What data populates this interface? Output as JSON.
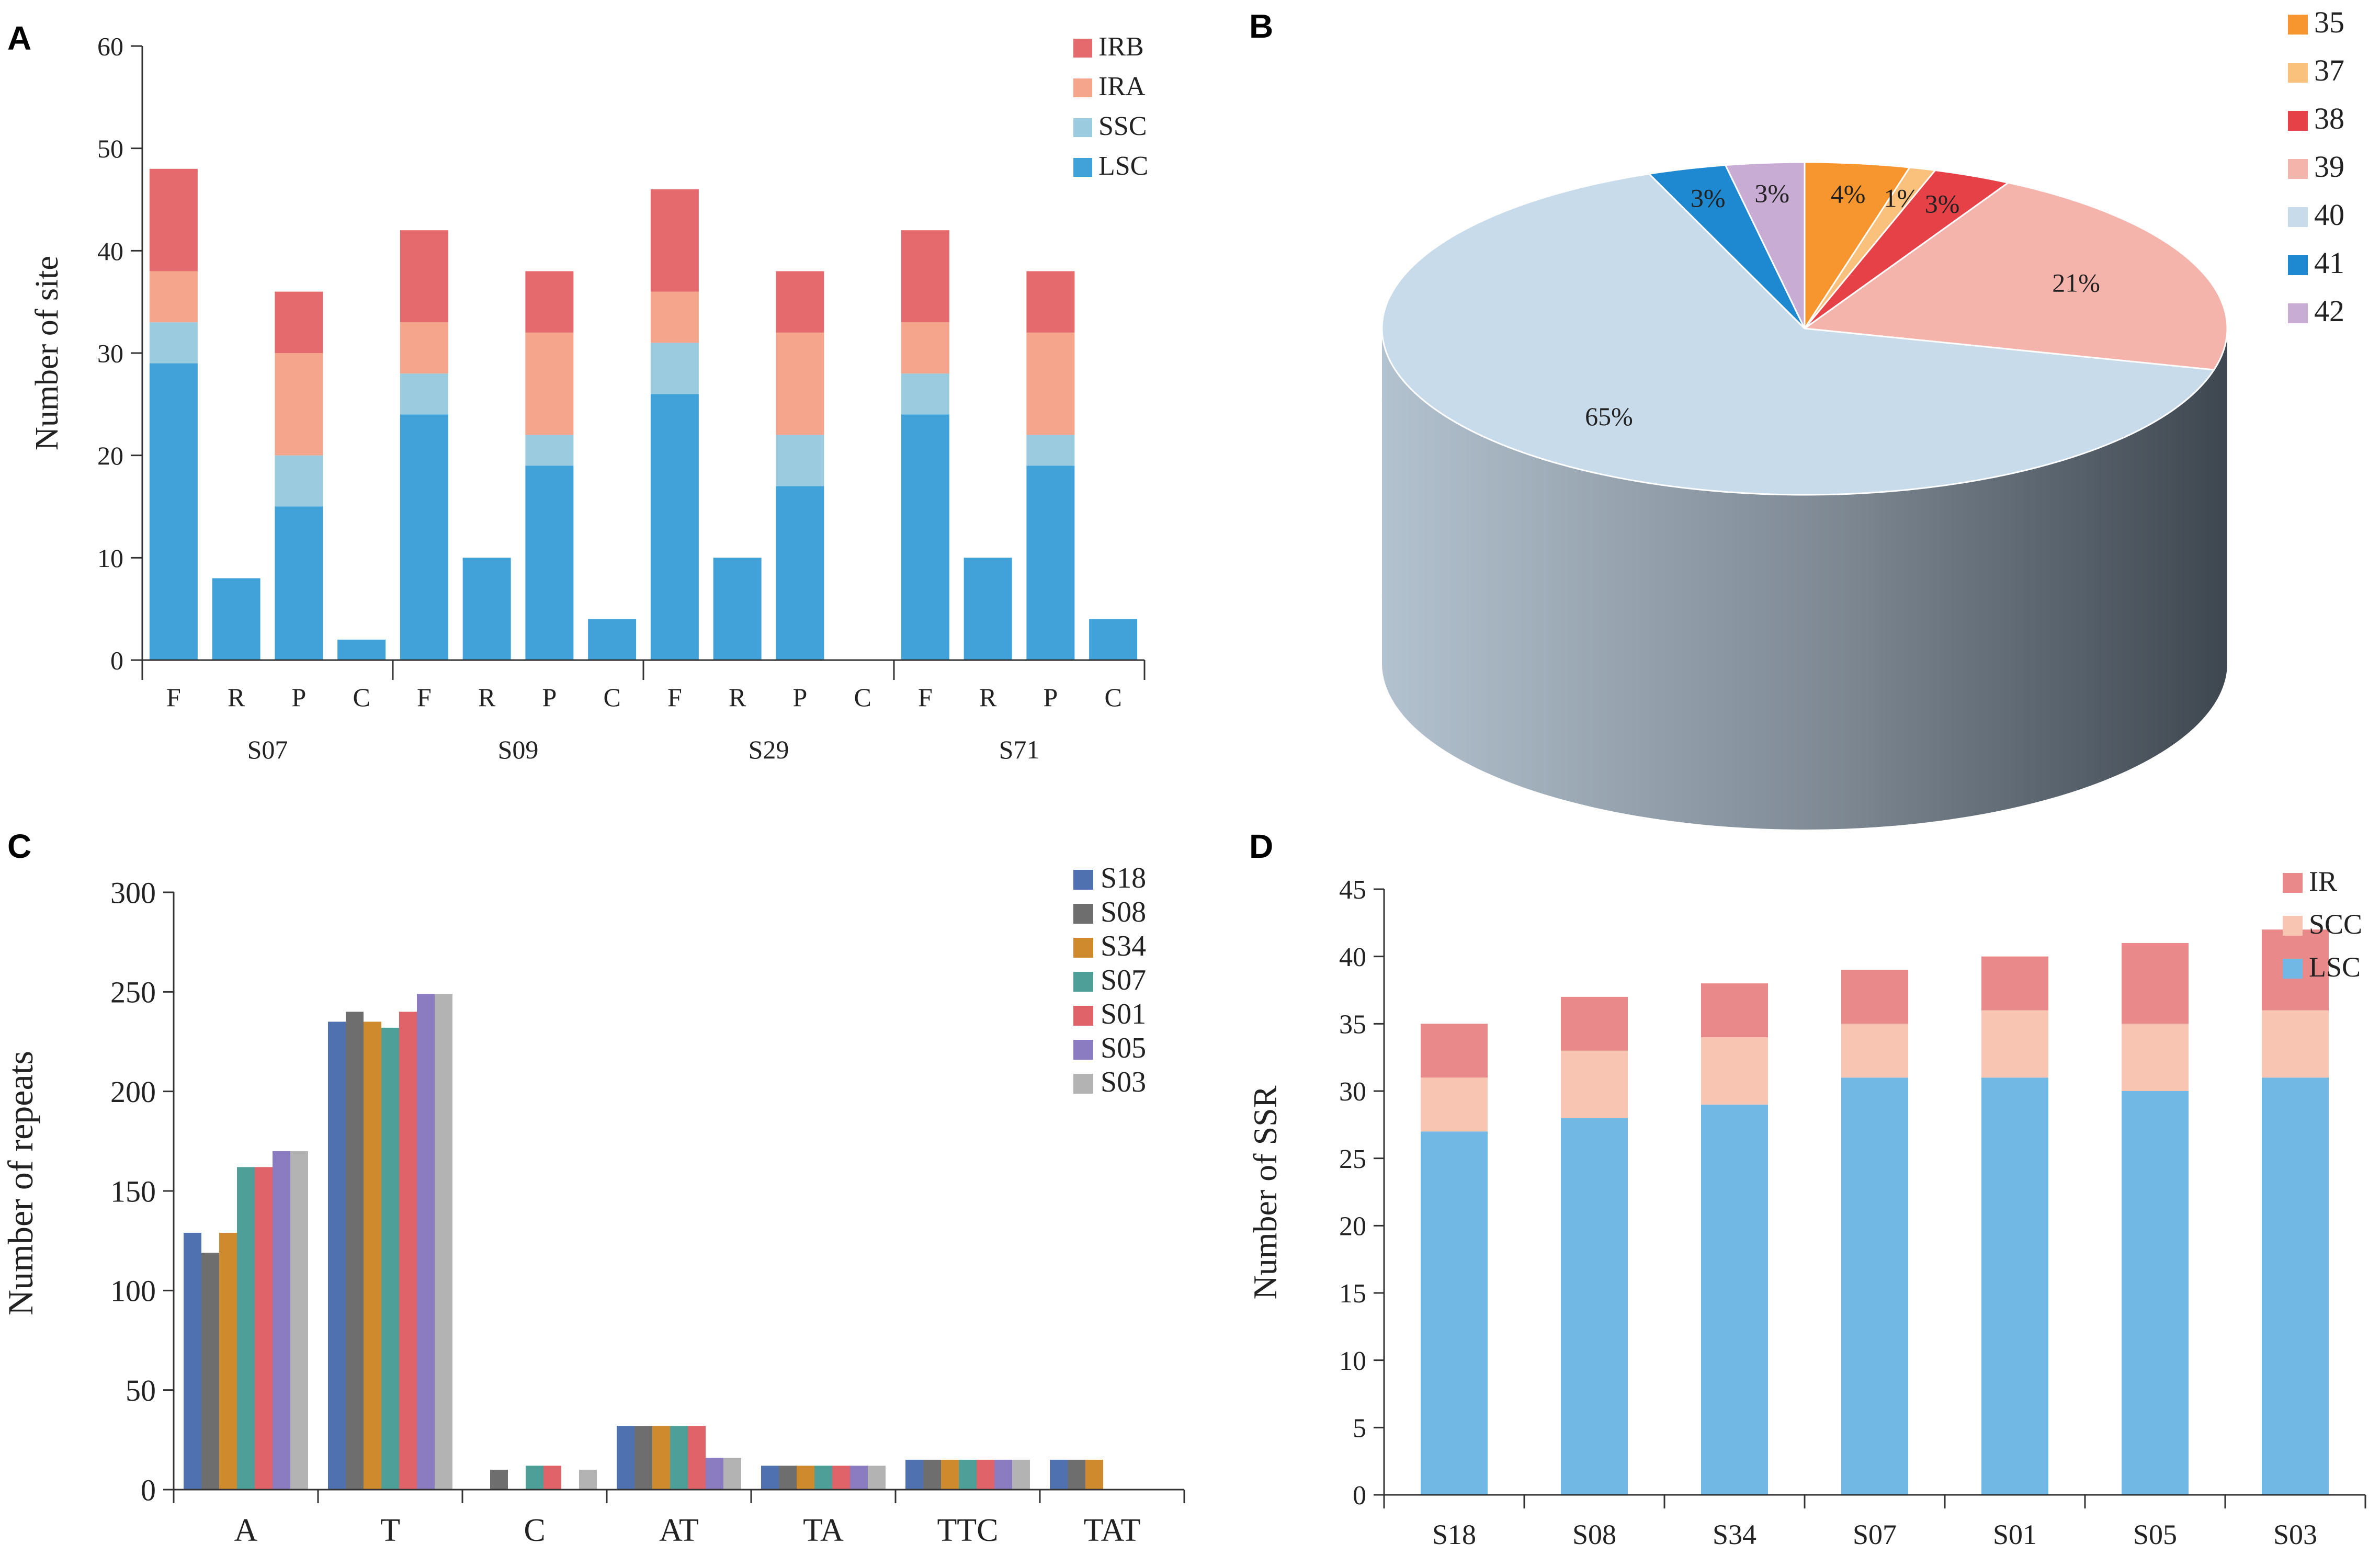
{
  "figure": {
    "panels": [
      "A",
      "B",
      "C",
      "D"
    ],
    "colors": {
      "lsc_a": "#41a2da",
      "ssc_a": "#9acbdf",
      "ira": "#f5a58b",
      "irb": "#e56a6d",
      "lsc_d": "#72b8e4",
      "scc_d": "#f8c5b3",
      "ir_d": "#ea8989",
      "s18": "#4f71b0",
      "s08": "#6e6e6e",
      "s34": "#d08a2e",
      "s07": "#4e9f98",
      "s01": "#e0636a",
      "s05": "#8b7cc1",
      "s03": "#b3b3b3",
      "p35": "#f7952f",
      "p37": "#f9c17b",
      "p38": "#e54147",
      "p39": "#f4b4ac",
      "p40": "#c8dbeb",
      "p41": "#1e88d0",
      "p42": "#c8acd4",
      "axis": "#333333"
    }
  },
  "chart_data": [
    {
      "panel": "A",
      "type": "bar",
      "stacked": true,
      "ylabel": "Number of site",
      "ylim": [
        0,
        60
      ],
      "yticks": [
        0,
        10,
        20,
        30,
        40,
        50,
        60
      ],
      "groups": [
        "S07",
        "S09",
        "S29",
        "S71"
      ],
      "categories": [
        "F",
        "R",
        "P",
        "C"
      ],
      "legend": [
        "IRB",
        "IRA",
        "SSC",
        "LSC"
      ],
      "series": [
        {
          "name": "LSC",
          "values": [
            [
              29,
              8,
              15,
              2
            ],
            [
              24,
              10,
              19,
              4
            ],
            [
              26,
              10,
              17,
              0
            ],
            [
              24,
              10,
              19,
              4
            ]
          ]
        },
        {
          "name": "SSC",
          "values": [
            [
              4,
              0,
              5,
              0
            ],
            [
              4,
              0,
              3,
              0
            ],
            [
              5,
              0,
              5,
              0
            ],
            [
              4,
              0,
              3,
              0
            ]
          ]
        },
        {
          "name": "IRA",
          "values": [
            [
              5,
              0,
              10,
              0
            ],
            [
              5,
              0,
              10,
              0
            ],
            [
              5,
              0,
              10,
              0
            ],
            [
              5,
              0,
              10,
              0
            ]
          ]
        },
        {
          "name": "IRB",
          "values": [
            [
              10,
              0,
              6,
              0
            ],
            [
              9,
              0,
              6,
              0
            ],
            [
              10,
              0,
              6,
              0
            ],
            [
              9,
              0,
              6,
              0
            ]
          ]
        }
      ]
    },
    {
      "panel": "B",
      "type": "pie",
      "legend": [
        "35",
        "37",
        "38",
        "39",
        "40",
        "41",
        "42"
      ],
      "slices": [
        {
          "name": "35",
          "value": 4,
          "label": "4%"
        },
        {
          "name": "37",
          "value": 1,
          "label": "1%"
        },
        {
          "name": "38",
          "value": 3,
          "label": "3%"
        },
        {
          "name": "39",
          "value": 21,
          "label": "21%"
        },
        {
          "name": "40",
          "value": 65,
          "label": "65%"
        },
        {
          "name": "41",
          "value": 3,
          "label": "3%"
        },
        {
          "name": "42",
          "value": 3,
          "label": "3%"
        }
      ]
    },
    {
      "panel": "C",
      "type": "bar",
      "stacked": false,
      "ylabel": "Number of repeats",
      "ylim": [
        0,
        300
      ],
      "yticks": [
        0,
        50,
        100,
        150,
        200,
        250,
        300
      ],
      "categories": [
        "A",
        "T",
        "C",
        "AT",
        "TA",
        "TTC",
        "TAT"
      ],
      "legend": [
        "S18",
        "S08",
        "S34",
        "S07",
        "S01",
        "S05",
        "S03"
      ],
      "series": [
        {
          "name": "S18",
          "values": [
            129,
            235,
            0,
            32,
            12,
            15,
            15
          ]
        },
        {
          "name": "S08",
          "values": [
            119,
            240,
            10,
            32,
            12,
            15,
            15
          ]
        },
        {
          "name": "S34",
          "values": [
            129,
            235,
            0,
            32,
            12,
            15,
            15
          ]
        },
        {
          "name": "S07",
          "values": [
            162,
            232,
            12,
            32,
            12,
            15,
            0
          ]
        },
        {
          "name": "S01",
          "values": [
            162,
            240,
            12,
            32,
            12,
            15,
            0
          ]
        },
        {
          "name": "S05",
          "values": [
            170,
            249,
            0,
            16,
            12,
            15,
            0
          ]
        },
        {
          "name": "S03",
          "values": [
            170,
            249,
            10,
            16,
            12,
            15,
            0
          ]
        }
      ]
    },
    {
      "panel": "D",
      "type": "bar",
      "stacked": true,
      "ylabel": "Number of SSR",
      "ylim": [
        0,
        45
      ],
      "yticks": [
        0,
        5,
        10,
        15,
        20,
        25,
        30,
        35,
        40,
        45
      ],
      "categories": [
        "S18",
        "S08",
        "S34",
        "S07",
        "S01",
        "S05",
        "S03"
      ],
      "legend": [
        "IR",
        "SCC",
        "LSC"
      ],
      "series": [
        {
          "name": "LSC",
          "values": [
            27,
            28,
            29,
            31,
            31,
            30,
            31
          ]
        },
        {
          "name": "SCC",
          "values": [
            4,
            5,
            5,
            4,
            5,
            5,
            5
          ]
        },
        {
          "name": "IR",
          "values": [
            4,
            4,
            4,
            4,
            4,
            6,
            6
          ]
        }
      ]
    }
  ]
}
